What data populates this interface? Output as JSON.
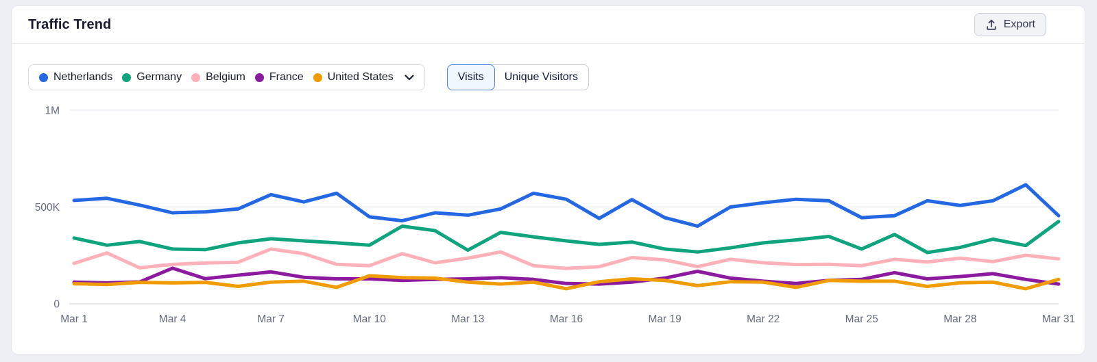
{
  "card": {
    "title": "Traffic Trend",
    "export_button": {
      "label": "Export",
      "icon": "upload-icon"
    }
  },
  "legend": {
    "dropdown_icon": "chevron-down-icon",
    "items": [
      {
        "label": "Netherlands",
        "color": "#2467e3"
      },
      {
        "label": "Germany",
        "color": "#0fa47e"
      },
      {
        "label": "Belgium",
        "color": "#ffb1ba"
      },
      {
        "label": "France",
        "color": "#8c1a9e"
      },
      {
        "label": "United States",
        "color": "#f09c00"
      }
    ]
  },
  "metric_toggle": {
    "options": [
      {
        "label": "Visits",
        "selected": true
      },
      {
        "label": "Unique Visitors",
        "selected": false
      }
    ]
  },
  "chart_data": {
    "type": "line",
    "title": "Traffic Trend",
    "x": [
      "Mar 1",
      "Mar 2",
      "Mar 3",
      "Mar 4",
      "Mar 5",
      "Mar 6",
      "Mar 7",
      "Mar 8",
      "Mar 9",
      "Mar 10",
      "Mar 11",
      "Mar 12",
      "Mar 13",
      "Mar 14",
      "Mar 15",
      "Mar 16",
      "Mar 17",
      "Mar 18",
      "Mar 19",
      "Mar 20",
      "Mar 21",
      "Mar 22",
      "Mar 23",
      "Mar 24",
      "Mar 25",
      "Mar 26",
      "Mar 27",
      "Mar 28",
      "Mar 29",
      "Mar 30",
      "Mar 31"
    ],
    "x_tick_labels": [
      "Mar 1",
      "Mar 4",
      "Mar 7",
      "Mar 10",
      "Mar 13",
      "Mar 16",
      "Mar 19",
      "Mar 22",
      "Mar 25",
      "Mar 28",
      "Mar 31"
    ],
    "y_ticks": [
      {
        "value": 0,
        "label": "0"
      },
      {
        "value": 500000,
        "label": "500K"
      },
      {
        "value": 1000000,
        "label": "1M"
      }
    ],
    "ylim": [
      0,
      1000000
    ],
    "grid": "horizontal",
    "legend_position": "top-left",
    "metric": "Visits",
    "series": [
      {
        "name": "Netherlands",
        "color": "#2467e3",
        "values": [
          534000,
          545000,
          510000,
          470000,
          475000,
          490000,
          564000,
          526000,
          571000,
          449000,
          429000,
          470000,
          458000,
          490000,
          571000,
          540000,
          441000,
          538000,
          445000,
          401000,
          500000,
          522000,
          540000,
          532000,
          445000,
          455000,
          532000,
          508000,
          532000,
          615000,
          455000
        ]
      },
      {
        "name": "Germany",
        "color": "#0fa47e",
        "values": [
          340000,
          303000,
          322000,
          283000,
          280000,
          315000,
          336000,
          325000,
          315000,
          303000,
          401000,
          378000,
          277000,
          369000,
          346000,
          325000,
          307000,
          319000,
          283000,
          268000,
          289000,
          315000,
          330000,
          348000,
          283000,
          358000,
          265000,
          291000,
          334000,
          301000,
          425000
        ]
      },
      {
        "name": "Belgium",
        "color": "#ffb1ba",
        "values": [
          209000,
          263000,
          186000,
          204000,
          211000,
          215000,
          283000,
          259000,
          204000,
          197000,
          259000,
          212000,
          236000,
          268000,
          197000,
          183000,
          192000,
          239000,
          227000,
          192000,
          230000,
          212000,
          203000,
          204000,
          197000,
          230000,
          216000,
          236000,
          218000,
          251000,
          232000
        ]
      },
      {
        "name": "France",
        "color": "#8c1a9e",
        "values": [
          112000,
          108000,
          113000,
          184000,
          130000,
          148000,
          165000,
          137000,
          129000,
          129000,
          121000,
          126000,
          129000,
          135000,
          126000,
          105000,
          102000,
          112000,
          133000,
          168000,
          133000,
          117000,
          105000,
          121000,
          126000,
          161000,
          129000,
          141000,
          156000,
          126000,
          102000
        ]
      },
      {
        "name": "United States",
        "color": "#f09c00",
        "values": [
          104000,
          100000,
          111000,
          108000,
          111000,
          90000,
          112000,
          117000,
          85000,
          145000,
          135000,
          133000,
          112000,
          102000,
          112000,
          78000,
          114000,
          129000,
          121000,
          94000,
          114000,
          112000,
          85000,
          121000,
          117000,
          117000,
          90000,
          109000,
          112000,
          78000,
          126000
        ]
      }
    ],
    "style": {
      "grid_color": "#e8eaef",
      "zero_line_color": "#d7dae1",
      "axis_label_color": "#656c80",
      "line_width": 5
    }
  }
}
